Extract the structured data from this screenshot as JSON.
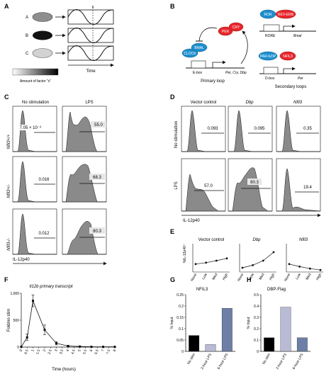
{
  "panels": {
    "A": {
      "letter": "A",
      "rows": [
        "A",
        "B",
        "C"
      ],
      "xlabel": "Time",
      "legend": "Amount of factor \"x\""
    },
    "B": {
      "letter": "B",
      "nodes": {
        "clock": "CLOCK",
        "bmal": "BMAL",
        "per": "PER",
        "cry": "CRY",
        "ror": "ROR",
        "reverb": "REV-ERB",
        "parbzip": "PAR-bZIP",
        "nfil3": "NFIL3"
      },
      "ebox": "E-box",
      "ebox_targets": "Per, Cry, Dbp",
      "rore": "RORE",
      "bmal_target": "Bmal",
      "dbox": "D-box",
      "dbox_target": "Per",
      "primary_loop": "Primary loop",
      "secondary_loops": "Secondary loops"
    },
    "C": {
      "letter": "C",
      "col_titles": [
        "No stimulation",
        "LPS"
      ],
      "row_labels": [
        "Nfil3+/+",
        "Nfil3+/-",
        "Nfil3-/-"
      ],
      "values_nostim": [
        "7.05 × 10⁻³",
        "0.016",
        "0.012"
      ],
      "values_lps": [
        "55.0",
        "68.3",
        "80.3"
      ],
      "xlabel": "IL-12p40"
    },
    "D": {
      "letter": "D",
      "col_titles": [
        "Vector control",
        "Dbp",
        "Nfil3"
      ],
      "row_labels": [
        "No stimulation",
        "LPS"
      ],
      "values_nostim": [
        "0.093",
        "0.095",
        "0.35"
      ],
      "values_lps": [
        "57.0",
        "80.3",
        "19.4"
      ],
      "xlabel": "IL-12p40"
    },
    "E": {
      "letter": "E",
      "ylabel": "%IL-12p40⁺",
      "titles": [
        "Vector control",
        "Dbp",
        "Nfil3"
      ],
      "categories": [
        "None",
        "Low",
        "Med",
        "High"
      ]
    },
    "F": {
      "letter": "F",
      "title": "Il12b primary transcript",
      "ylabel": "Fold/no stim",
      "xlabel": "Time (hours)",
      "yticks": [
        "0",
        "500",
        "1,000"
      ],
      "xticks": [
        "0",
        "0.5",
        "1",
        "1.5",
        "2",
        "2.5",
        "3",
        "3.5",
        "4",
        "4.5",
        "5",
        "5.5",
        "6",
        "6.5",
        "7",
        "7.5",
        "8"
      ]
    },
    "G": {
      "letter": "G",
      "title": "NFIL3",
      "ylabel": "% Input",
      "yticks": [
        "0",
        "0.05",
        "0.1",
        "0.15",
        "0.2",
        "0.25"
      ],
      "categories": [
        "No stim",
        "2-hour LPS",
        "6-hour LPS"
      ]
    },
    "H": {
      "letter": "H",
      "title": "DBP-Flag",
      "ylabel": "% Input",
      "yticks": [
        "0",
        "0.1",
        "0.2",
        "0.3",
        "0.4",
        "0.5"
      ],
      "categories": [
        "No stim",
        "2-hour LPS",
        "6-hour LPS"
      ]
    }
  },
  "colors": {
    "red": "#e8262b",
    "blue": "#1d8fcf",
    "bar_black": "#000000",
    "bar_light": "#b9bad4",
    "bar_slate": "#6d7fa6",
    "hist_fill": "#8a8a8a"
  },
  "chart_data": [
    {
      "type": "line",
      "panel": "E1",
      "title": "Vector control",
      "ylabel": "%IL-12p40+",
      "categories": [
        "None",
        "Low",
        "Med",
        "High"
      ],
      "values": [
        28,
        33,
        40,
        48
      ],
      "ylim": [
        0,
        100
      ]
    },
    {
      "type": "line",
      "panel": "E2",
      "title": "Dbp",
      "ylabel": "%IL-12p40+",
      "categories": [
        "None",
        "Low",
        "Med",
        "High"
      ],
      "values": [
        15,
        24,
        40,
        70
      ],
      "ylim": [
        0,
        100
      ]
    },
    {
      "type": "line",
      "panel": "E3",
      "title": "Nfil3",
      "ylabel": "%IL-12p40+",
      "categories": [
        "None",
        "Low",
        "Med",
        "High"
      ],
      "values": [
        28,
        19,
        12,
        7
      ],
      "ylim": [
        0,
        100
      ]
    },
    {
      "type": "line",
      "panel": "F",
      "title": "Il12b primary transcript",
      "xlabel": "Time (hours)",
      "ylabel": "Fold/no stim",
      "x": [
        0,
        0.5,
        1,
        2,
        3,
        4,
        5,
        6,
        7,
        8
      ],
      "values": [
        5,
        180,
        860,
        320,
        70,
        20,
        10,
        5,
        5,
        5
      ],
      "errors": [
        0,
        60,
        110,
        90,
        30,
        10,
        5,
        0,
        0,
        0
      ],
      "xlim": [
        0,
        8
      ],
      "ylim": [
        0,
        1000
      ]
    },
    {
      "type": "bar",
      "panel": "G",
      "title": "NFIL3",
      "ylabel": "% Input",
      "categories": [
        "No stim",
        "2-hour LPS",
        "6-hour LPS"
      ],
      "values": [
        0.07,
        0.03,
        0.19
      ],
      "ylim": [
        0,
        0.25
      ]
    },
    {
      "type": "bar",
      "panel": "H",
      "title": "DBP-Flag",
      "ylabel": "% Input",
      "categories": [
        "No stim",
        "2-hour LPS",
        "6-hour LPS"
      ],
      "values": [
        0.12,
        0.39,
        0.12
      ],
      "ylim": [
        0,
        0.5
      ]
    }
  ]
}
